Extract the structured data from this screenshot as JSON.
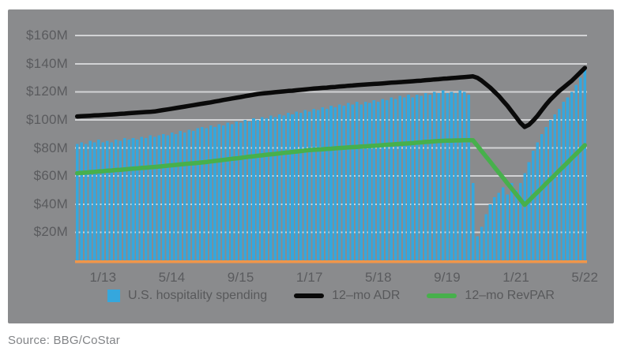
{
  "source_note": "Source: BBG/CoStar",
  "colors": {
    "panel_bg": "#8a8b8d",
    "grid": "#d2d3d5",
    "bar": "#35a7dd",
    "adr_line": "#0a0a0a",
    "revpar_line": "#47b04c",
    "baseline": "#f0964a",
    "axis_text": "#5a5b5e",
    "legend_text": "#58595b",
    "source_text": "#828487"
  },
  "legend": [
    {
      "label": "U.S. hospitality spending",
      "marker": "square",
      "color": "#35a7dd"
    },
    {
      "label": "12–mo ADR",
      "marker": "line",
      "color": "#0a0a0a"
    },
    {
      "label": "12–mo RevPAR",
      "marker": "line",
      "color": "#47b04c"
    }
  ],
  "chart_data": {
    "type": "bar",
    "note": "monthly bars with two overlaid lines, values in $M on shared axis",
    "ylim": [
      0,
      175
    ],
    "grid": true,
    "legend_position": "bottom",
    "y_ticks": [
      {
        "label": "$160M",
        "value": 160
      },
      {
        "label": "$140M",
        "value": 140
      },
      {
        "label": "$120M",
        "value": 120
      },
      {
        "label": "$100M",
        "value": 100
      },
      {
        "label": "$80M",
        "value": 80
      },
      {
        "label": "$60M",
        "value": 60
      },
      {
        "label": "$40M",
        "value": 40
      },
      {
        "label": "$20M",
        "value": 20
      }
    ],
    "x_ticks": [
      {
        "label": "1/13",
        "index": 6
      },
      {
        "label": "5/14",
        "index": 22
      },
      {
        "label": "9/15",
        "index": 38
      },
      {
        "label": "1/17",
        "index": 54
      },
      {
        "label": "5/18",
        "index": 70
      },
      {
        "label": "9/19",
        "index": 86
      },
      {
        "label": "1/21",
        "index": 102
      },
      {
        "label": "5/22",
        "index": 118
      }
    ],
    "months": [
      "7/12",
      "8/12",
      "9/12",
      "10/12",
      "11/12",
      "12/12",
      "1/13",
      "2/13",
      "3/13",
      "4/13",
      "5/13",
      "6/13",
      "7/13",
      "8/13",
      "9/13",
      "10/13",
      "11/13",
      "12/13",
      "1/14",
      "2/14",
      "3/14",
      "4/14",
      "5/14",
      "6/14",
      "7/14",
      "8/14",
      "9/14",
      "10/14",
      "11/14",
      "12/14",
      "1/15",
      "2/15",
      "3/15",
      "4/15",
      "5/15",
      "6/15",
      "7/15",
      "8/15",
      "9/15",
      "10/15",
      "11/15",
      "12/15",
      "1/16",
      "2/16",
      "3/16",
      "4/16",
      "5/16",
      "6/16",
      "7/16",
      "8/16",
      "9/16",
      "10/16",
      "11/16",
      "12/16",
      "1/17",
      "2/17",
      "3/17",
      "4/17",
      "5/17",
      "6/17",
      "7/17",
      "8/17",
      "9/17",
      "10/17",
      "11/17",
      "12/17",
      "1/18",
      "2/18",
      "3/18",
      "4/18",
      "5/18",
      "6/18",
      "7/18",
      "8/18",
      "9/18",
      "10/18",
      "11/18",
      "12/18",
      "1/19",
      "2/19",
      "3/19",
      "4/19",
      "5/19",
      "6/19",
      "7/19",
      "8/19",
      "9/19",
      "10/19",
      "11/19",
      "12/19",
      "1/20",
      "2/20",
      "3/20",
      "4/20",
      "5/20",
      "6/20",
      "7/20",
      "8/20",
      "9/20",
      "10/20",
      "11/20",
      "12/20",
      "1/21",
      "2/21",
      "3/21",
      "4/21",
      "5/21",
      "6/21",
      "7/21",
      "8/21",
      "9/21",
      "10/21",
      "11/21",
      "12/21",
      "1/22",
      "2/22",
      "3/22",
      "4/22",
      "5/22"
    ],
    "series": [
      {
        "name": "U.S. hospitality spending",
        "type": "bar",
        "values": [
          83,
          84,
          83,
          85,
          84,
          86,
          84,
          85,
          84,
          86,
          85,
          87,
          86,
          87,
          86,
          88,
          87,
          89,
          88,
          89,
          90,
          89,
          91,
          90,
          92,
          91,
          93,
          92,
          94,
          95,
          94,
          96,
          95,
          97,
          96,
          98,
          97,
          99,
          98,
          100,
          99,
          101,
          100,
          102,
          101,
          103,
          102,
          104,
          103,
          105,
          104,
          106,
          105,
          107,
          106,
          108,
          107,
          109,
          108,
          110,
          109,
          111,
          110,
          112,
          111,
          113,
          111,
          113,
          112,
          114,
          113,
          115,
          114,
          116,
          115,
          117,
          116,
          118,
          116,
          118,
          117,
          119,
          118,
          120,
          119,
          121,
          119,
          120,
          119,
          121,
          120,
          118,
          55,
          17,
          24,
          33,
          40,
          45,
          48,
          52,
          47,
          55,
          50,
          55,
          62,
          70,
          78,
          84,
          90,
          95,
          100,
          104,
          108,
          113,
          116,
          120,
          125,
          130,
          136
        ]
      },
      {
        "name": "12–mo ADR",
        "type": "line",
        "values": [
          102.5,
          102.7,
          102.8,
          103,
          103.2,
          103.3,
          103.5,
          103.7,
          103.9,
          104.1,
          104.3,
          104.5,
          104.8,
          105,
          105.2,
          105.4,
          105.6,
          105.8,
          106,
          106.5,
          107,
          107.5,
          108,
          108.5,
          109,
          109.5,
          110,
          110.5,
          111,
          111.5,
          112,
          112.5,
          113.1,
          113.6,
          114.2,
          114.7,
          115.3,
          115.8,
          116.3,
          116.9,
          117.4,
          118,
          118.5,
          118.8,
          119.1,
          119.4,
          119.7,
          120,
          120.3,
          120.6,
          120.8,
          121.1,
          121.4,
          121.7,
          122,
          122.3,
          122.5,
          122.8,
          123,
          123.3,
          123.5,
          123.8,
          124,
          124.3,
          124.5,
          124.8,
          125,
          125.2,
          125.4,
          125.6,
          125.8,
          126,
          126.3,
          126.5,
          126.7,
          126.9,
          127.1,
          127.3,
          127.5,
          127.8,
          128,
          128.3,
          128.5,
          128.8,
          129,
          129.3,
          129.5,
          129.8,
          130,
          130.3,
          130.5,
          130.8,
          131,
          130,
          128,
          125.5,
          123,
          120,
          117,
          113.5,
          110,
          106,
          102,
          98,
          95,
          96.5,
          99.5,
          103,
          107,
          111,
          114.5,
          117.5,
          120.5,
          123,
          125.5,
          128,
          131,
          134,
          137
        ]
      },
      {
        "name": "12–mo RevPAR",
        "type": "line",
        "values": [
          62,
          62.3,
          62.5,
          62.8,
          63,
          63.3,
          63.5,
          63.8,
          64,
          64.3,
          64.5,
          64.8,
          65,
          65.3,
          65.5,
          65.8,
          66,
          66.3,
          66.5,
          66.8,
          67.1,
          67.4,
          67.7,
          68,
          68.3,
          68.6,
          68.9,
          69.1,
          69.4,
          69.7,
          70,
          70.4,
          70.8,
          71.1,
          71.5,
          71.9,
          72.3,
          72.6,
          73,
          73.4,
          73.8,
          74.1,
          74.5,
          74.8,
          75.2,
          75.5,
          75.8,
          76.2,
          76.5,
          76.8,
          77.2,
          77.5,
          77.8,
          78.2,
          78.5,
          78.7,
          78.9,
          79.1,
          79.3,
          79.5,
          79.8,
          80,
          80.2,
          80.4,
          80.6,
          80.8,
          81,
          81.2,
          81.4,
          81.6,
          81.8,
          82,
          82.3,
          82.5,
          82.7,
          82.9,
          83.1,
          83.3,
          83.5,
          83.8,
          84,
          84.3,
          84.5,
          84.8,
          85,
          85.1,
          85.2,
          85.3,
          85.4,
          85.4,
          85.5,
          85.5,
          85.5,
          81.7,
          77.8,
          74,
          70.2,
          66.3,
          62.5,
          58.7,
          54.8,
          51,
          47.2,
          43.3,
          39.5,
          42.5,
          45.6,
          48.6,
          51.6,
          54.7,
          57.7,
          60.7,
          63.8,
          66.8,
          69.8,
          72.9,
          75.9,
          79,
          82
        ]
      }
    ]
  }
}
